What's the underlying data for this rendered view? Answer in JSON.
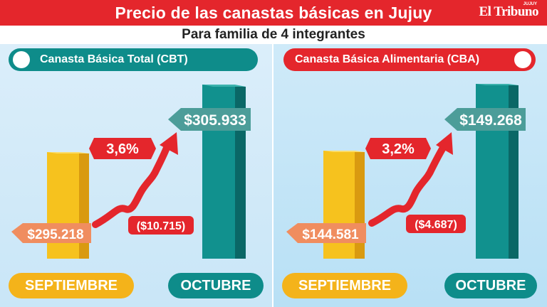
{
  "header": {
    "title": "Precio de las canastas básicas en Jujuy",
    "brand": "El Tribuno",
    "brand_region": "JUJUY"
  },
  "subtitle": "Para familia de 4 integrantes",
  "colors": {
    "red": "#e4262c",
    "teal": "#0e8c8a",
    "yellow": "#f4b31a",
    "salmon": "#f08d5f"
  },
  "chart_data": [
    {
      "type": "bar",
      "title": "Canasta Básica Total (CBT)",
      "categories": [
        "SEPTIEMBRE",
        "OCTUBRE"
      ],
      "values": [
        295218,
        305933
      ],
      "value_labels": [
        "$295.218",
        "$305.933"
      ],
      "change_pct": "3,6%",
      "change_abs": "($10.715)"
    },
    {
      "type": "bar",
      "title": "Canasta Básica Alimentaria (CBA)",
      "categories": [
        "SEPTIEMBRE",
        "OCTUBRE"
      ],
      "values": [
        144581,
        149268
      ],
      "value_labels": [
        "$144.581",
        "$149.268"
      ],
      "change_pct": "3,2%",
      "change_abs": "($4.687)"
    }
  ]
}
